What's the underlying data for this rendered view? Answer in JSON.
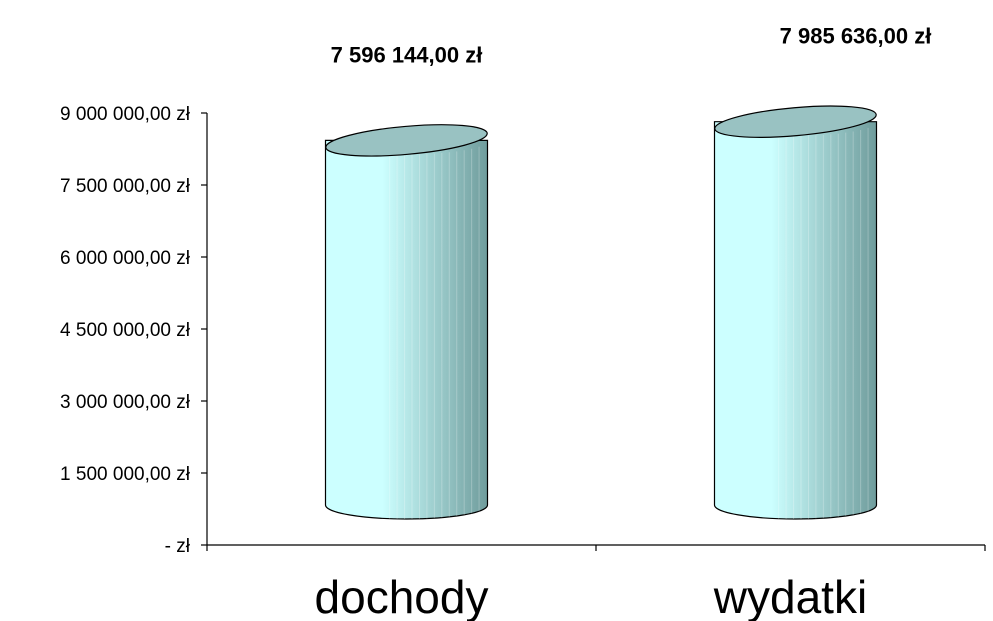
{
  "chart_data": {
    "type": "bar",
    "bar_shape": "cylinder",
    "categories": [
      "dochody",
      "wydatki"
    ],
    "values": [
      7596144.0,
      7985636.0
    ],
    "data_labels": [
      "7 596 144,00 zł",
      "7 985 636,00 zł"
    ],
    "y_ticks": [
      0,
      1500000,
      3000000,
      4500000,
      6000000,
      7500000,
      9000000
    ],
    "y_tick_labels": [
      "-    zł",
      "1 500 000,00 zł",
      "3 000 000,00 zł",
      "4 500 000,00 zł",
      "6 000 000,00 zł",
      "7 500 000,00 zł",
      "9 000 000,00 zł"
    ],
    "ylim": [
      0,
      9000000
    ],
    "grid": false,
    "legend": "none",
    "colors": {
      "body_light": "#ccffff",
      "body_dark": "#6f9c9c",
      "top": "#99c2c2",
      "outline": "#000000"
    }
  }
}
